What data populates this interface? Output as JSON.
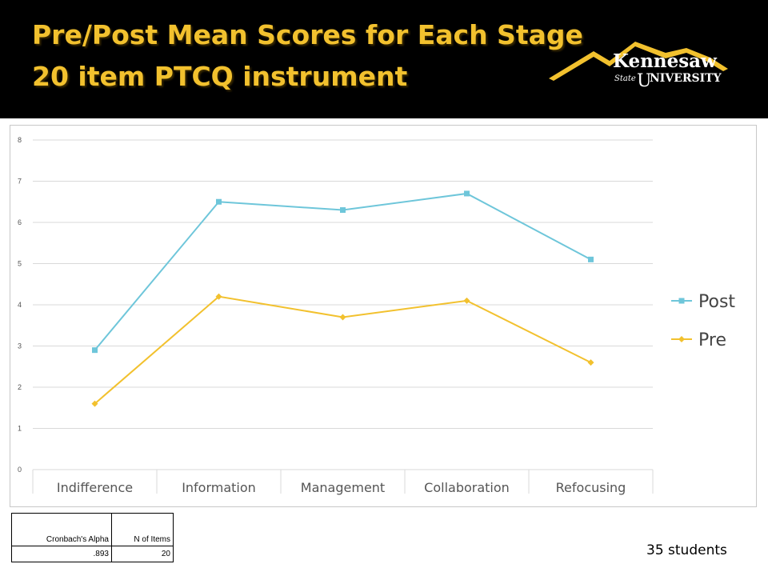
{
  "slide": {
    "title_line1": "Pre/Post Mean Scores for Each Stage",
    "title_line2": "20 item PTCQ instrument",
    "logo": {
      "name": "Kennesaw State University logo",
      "text_top": "Kennesaw",
      "text_state": "State",
      "text_u": "U",
      "text_niversity": "NIVERSITY",
      "colors": {
        "gold": "#F2C12E",
        "white": "#FFFFFF"
      }
    }
  },
  "chart_data": {
    "type": "line",
    "categories": [
      "Indifference",
      "Information",
      "Management",
      "Collaboration",
      "Refocusing"
    ],
    "series": [
      {
        "name": "Post",
        "values": [
          2.9,
          6.5,
          6.3,
          6.7,
          5.1
        ],
        "color": "#6EC6DA",
        "marker": "square"
      },
      {
        "name": "Pre",
        "values": [
          1.6,
          4.2,
          3.7,
          4.1,
          2.6
        ],
        "color": "#F2C12E",
        "marker": "diamond"
      }
    ],
    "ylim": [
      0,
      8
    ],
    "yticks": [
      "0",
      "1",
      "2",
      "3",
      "4",
      "5",
      "6",
      "7",
      "8"
    ],
    "grid": true,
    "legend": "right"
  },
  "stats_table": {
    "headers": [
      "Cronbach's Alpha",
      "N of Items"
    ],
    "values": [
      ".893",
      "20"
    ]
  },
  "note": "35 students"
}
